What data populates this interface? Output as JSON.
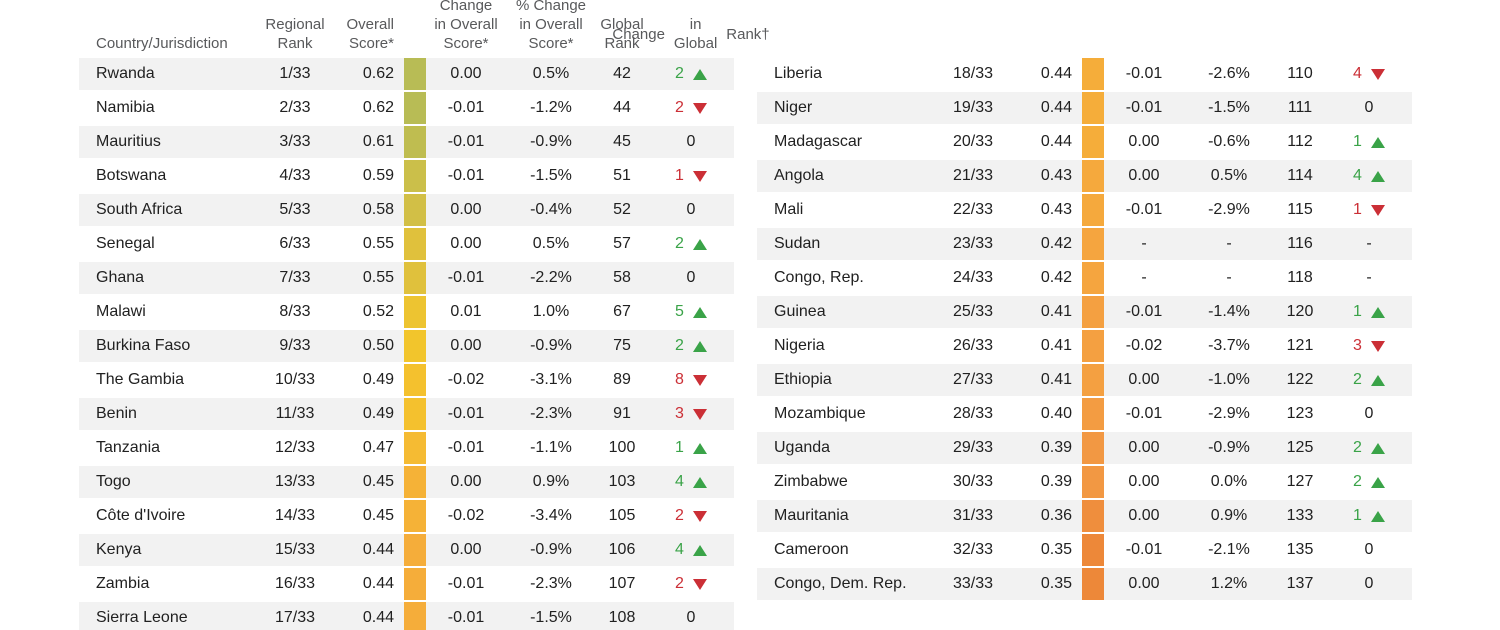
{
  "colors": {
    "positive": "#3aa348",
    "negative": "#cb2f36",
    "row_shade": "#f2f2f2",
    "header_text": "#58595b",
    "body_text": "#212121"
  },
  "header": {
    "country": "Country/Jurisdiction",
    "regional_rank": [
      "Regional",
      "Rank"
    ],
    "overall_score": [
      "Overall",
      "Score*"
    ],
    "change_overall": [
      "Change",
      "in Overall",
      "Score*"
    ],
    "pct_change_overall": [
      "% Change",
      "in Overall",
      "Score*"
    ],
    "global_rank": [
      "Global",
      "Rank"
    ],
    "change_global": [
      "Change",
      "in Global",
      "Rank†"
    ]
  },
  "chart_data": {
    "type": "table",
    "columns": [
      "Country/Jurisdiction",
      "Regional Rank",
      "Overall Score*",
      "Change in Overall Score*",
      "% Change in Overall Score*",
      "Global Rank",
      "Change in Global Rank†"
    ],
    "tables": [
      {
        "name": "left",
        "rows": [
          {
            "country": "Rwanda",
            "regional_rank": "1/33",
            "overall_score": "0.62",
            "bar_color": "#b8bc55",
            "change": "0.00",
            "pct_change": "0.5%",
            "global_rank": "42",
            "global_change": "2",
            "direction": "up"
          },
          {
            "country": "Namibia",
            "regional_rank": "2/33",
            "overall_score": "0.62",
            "bar_color": "#b8bc55",
            "change": "-0.01",
            "pct_change": "-1.2%",
            "global_rank": "44",
            "global_change": "2",
            "direction": "down"
          },
          {
            "country": "Mauritius",
            "regional_rank": "3/33",
            "overall_score": "0.61",
            "bar_color": "#bfbd50",
            "change": "-0.01",
            "pct_change": "-0.9%",
            "global_rank": "45",
            "global_change": "0",
            "direction": "none"
          },
          {
            "country": "Botswana",
            "regional_rank": "4/33",
            "overall_score": "0.59",
            "bar_color": "#cbbf4a",
            "change": "-0.01",
            "pct_change": "-1.5%",
            "global_rank": "51",
            "global_change": "1",
            "direction": "down"
          },
          {
            "country": "South Africa",
            "regional_rank": "5/33",
            "overall_score": "0.58",
            "bar_color": "#d2bf46",
            "change": "0.00",
            "pct_change": "-0.4%",
            "global_rank": "52",
            "global_change": "0",
            "direction": "none"
          },
          {
            "country": "Senegal",
            "regional_rank": "6/33",
            "overall_score": "0.55",
            "bar_color": "#e0c13c",
            "change": "0.00",
            "pct_change": "0.5%",
            "global_rank": "57",
            "global_change": "2",
            "direction": "up"
          },
          {
            "country": "Ghana",
            "regional_rank": "7/33",
            "overall_score": "0.55",
            "bar_color": "#e0c13c",
            "change": "-0.01",
            "pct_change": "-2.2%",
            "global_rank": "58",
            "global_change": "0",
            "direction": "none"
          },
          {
            "country": "Malawi",
            "regional_rank": "8/33",
            "overall_score": "0.52",
            "bar_color": "#edc431",
            "change": "0.01",
            "pct_change": "1.0%",
            "global_rank": "67",
            "global_change": "5",
            "direction": "up"
          },
          {
            "country": "Burkina Faso",
            "regional_rank": "9/33",
            "overall_score": "0.50",
            "bar_color": "#f2c52c",
            "change": "0.00",
            "pct_change": "-0.9%",
            "global_rank": "75",
            "global_change": "2",
            "direction": "up"
          },
          {
            "country": "The Gambia",
            "regional_rank": "10/33",
            "overall_score": "0.49",
            "bar_color": "#f4c12e",
            "change": "-0.02",
            "pct_change": "-3.1%",
            "global_rank": "89",
            "global_change": "8",
            "direction": "down"
          },
          {
            "country": "Benin",
            "regional_rank": "11/33",
            "overall_score": "0.49",
            "bar_color": "#f4c12e",
            "change": "-0.01",
            "pct_change": "-2.3%",
            "global_rank": "91",
            "global_change": "3",
            "direction": "down"
          },
          {
            "country": "Tanzania",
            "regional_rank": "12/33",
            "overall_score": "0.47",
            "bar_color": "#f5bb33",
            "change": "-0.01",
            "pct_change": "-1.1%",
            "global_rank": "100",
            "global_change": "1",
            "direction": "up"
          },
          {
            "country": "Togo",
            "regional_rank": "13/33",
            "overall_score": "0.45",
            "bar_color": "#f5b237",
            "change": "0.00",
            "pct_change": "0.9%",
            "global_rank": "103",
            "global_change": "4",
            "direction": "up"
          },
          {
            "country": "Côte d'Ivoire",
            "regional_rank": "14/33",
            "overall_score": "0.45",
            "bar_color": "#f5b237",
            "change": "-0.02",
            "pct_change": "-3.4%",
            "global_rank": "105",
            "global_change": "2",
            "direction": "down"
          },
          {
            "country": "Kenya",
            "regional_rank": "15/33",
            "overall_score": "0.44",
            "bar_color": "#f5ad3a",
            "change": "0.00",
            "pct_change": "-0.9%",
            "global_rank": "106",
            "global_change": "4",
            "direction": "up"
          },
          {
            "country": "Zambia",
            "regional_rank": "16/33",
            "overall_score": "0.44",
            "bar_color": "#f5ad3a",
            "change": "-0.01",
            "pct_change": "-2.3%",
            "global_rank": "107",
            "global_change": "2",
            "direction": "down"
          },
          {
            "country": "Sierra Leone",
            "regional_rank": "17/33",
            "overall_score": "0.44",
            "bar_color": "#f5ad3a",
            "change": "-0.01",
            "pct_change": "-1.5%",
            "global_rank": "108",
            "global_change": "0",
            "direction": "none"
          }
        ]
      },
      {
        "name": "right",
        "rows": [
          {
            "country": "Liberia",
            "regional_rank": "18/33",
            "overall_score": "0.44",
            "bar_color": "#f5ad3a",
            "change": "-0.01",
            "pct_change": "-2.6%",
            "global_rank": "110",
            "global_change": "4",
            "direction": "down"
          },
          {
            "country": "Niger",
            "regional_rank": "19/33",
            "overall_score": "0.44",
            "bar_color": "#f5ad3a",
            "change": "-0.01",
            "pct_change": "-1.5%",
            "global_rank": "111",
            "global_change": "0",
            "direction": "none"
          },
          {
            "country": "Madagascar",
            "regional_rank": "20/33",
            "overall_score": "0.44",
            "bar_color": "#f5ad3a",
            "change": "0.00",
            "pct_change": "-0.6%",
            "global_rank": "112",
            "global_change": "1",
            "direction": "up"
          },
          {
            "country": "Angola",
            "regional_rank": "21/33",
            "overall_score": "0.43",
            "bar_color": "#f5a93d",
            "change": "0.00",
            "pct_change": "0.5%",
            "global_rank": "114",
            "global_change": "4",
            "direction": "up"
          },
          {
            "country": "Mali",
            "regional_rank": "22/33",
            "overall_score": "0.43",
            "bar_color": "#f5a93d",
            "change": "-0.01",
            "pct_change": "-2.9%",
            "global_rank": "115",
            "global_change": "1",
            "direction": "down"
          },
          {
            "country": "Sudan",
            "regional_rank": "23/33",
            "overall_score": "0.42",
            "bar_color": "#f5a53f",
            "change": "-",
            "pct_change": "-",
            "global_rank": "116",
            "global_change": "-",
            "direction": "none"
          },
          {
            "country": "Congo, Rep.",
            "regional_rank": "24/33",
            "overall_score": "0.42",
            "bar_color": "#f5a53f",
            "change": "-",
            "pct_change": "-",
            "global_rank": "118",
            "global_change": "-",
            "direction": "none"
          },
          {
            "country": "Guinea",
            "regional_rank": "25/33",
            "overall_score": "0.41",
            "bar_color": "#f4a041",
            "change": "-0.01",
            "pct_change": "-1.4%",
            "global_rank": "120",
            "global_change": "1",
            "direction": "up"
          },
          {
            "country": "Nigeria",
            "regional_rank": "26/33",
            "overall_score": "0.41",
            "bar_color": "#f4a041",
            "change": "-0.02",
            "pct_change": "-3.7%",
            "global_rank": "121",
            "global_change": "3",
            "direction": "down"
          },
          {
            "country": "Ethiopia",
            "regional_rank": "27/33",
            "overall_score": "0.41",
            "bar_color": "#f4a041",
            "change": "0.00",
            "pct_change": "-1.0%",
            "global_rank": "122",
            "global_change": "2",
            "direction": "up"
          },
          {
            "country": "Mozambique",
            "regional_rank": "28/33",
            "overall_score": "0.40",
            "bar_color": "#f39c42",
            "change": "-0.01",
            "pct_change": "-2.9%",
            "global_rank": "123",
            "global_change": "0",
            "direction": "none"
          },
          {
            "country": "Uganda",
            "regional_rank": "29/33",
            "overall_score": "0.39",
            "bar_color": "#f29843",
            "change": "0.00",
            "pct_change": "-0.9%",
            "global_rank": "125",
            "global_change": "2",
            "direction": "up"
          },
          {
            "country": "Zimbabwe",
            "regional_rank": "30/33",
            "overall_score": "0.39",
            "bar_color": "#f29843",
            "change": "0.00",
            "pct_change": "0.0%",
            "global_rank": "127",
            "global_change": "2",
            "direction": "up"
          },
          {
            "country": "Mauritania",
            "regional_rank": "31/33",
            "overall_score": "0.36",
            "bar_color": "#ef8e3d",
            "change": "0.00",
            "pct_change": "0.9%",
            "global_rank": "133",
            "global_change": "1",
            "direction": "up"
          },
          {
            "country": "Cameroon",
            "regional_rank": "32/33",
            "overall_score": "0.35",
            "bar_color": "#ed8839",
            "change": "-0.01",
            "pct_change": "-2.1%",
            "global_rank": "135",
            "global_change": "0",
            "direction": "none"
          },
          {
            "country": "Congo, Dem. Rep.",
            "regional_rank": "33/33",
            "overall_score": "0.35",
            "bar_color": "#ed8839",
            "change": "0.00",
            "pct_change": "1.2%",
            "global_rank": "137",
            "global_change": "0",
            "direction": "none"
          }
        ]
      }
    ]
  }
}
